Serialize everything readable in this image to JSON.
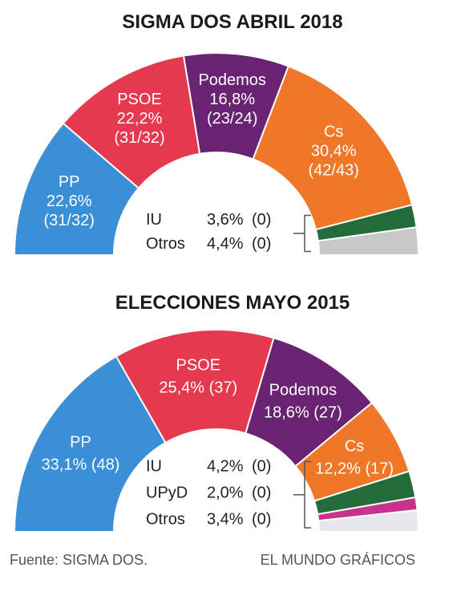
{
  "chart_data": [
    {
      "type": "pie",
      "title": "SIGMA DOS ABRIL 2018",
      "series": [
        {
          "name": "PP",
          "percent_label": "22,6%",
          "seats_label": "(31/32)",
          "value": 22.6,
          "color": "#3a8fd6",
          "label_color": "#ffffff"
        },
        {
          "name": "PSOE",
          "percent_label": "22,2%",
          "seats_label": "(31/32)",
          "value": 22.2,
          "color": "#e5394f",
          "label_color": "#ffffff"
        },
        {
          "name": "Podemos",
          "percent_label": "16,8%",
          "seats_label": "(23/24)",
          "value": 16.8,
          "color": "#6a2373",
          "label_color": "#ffffff"
        },
        {
          "name": "Cs",
          "percent_label": "30,4%",
          "seats_label": "(42/43)",
          "value": 30.4,
          "color": "#f07728",
          "label_color": "#ffffff"
        },
        {
          "name": "IU",
          "percent_label": "3,6%",
          "seats_label": "(0)",
          "value": 3.6,
          "color": "#236b38",
          "label_color": "#222222"
        },
        {
          "name": "Otros",
          "percent_label": "4,4%",
          "seats_label": "(0)",
          "value": 4.4,
          "color": "#c8c8c8",
          "label_color": "#222222"
        }
      ]
    },
    {
      "type": "pie",
      "title": "ELECCIONES MAYO 2015",
      "series": [
        {
          "name": "PP",
          "percent_label": "33,1%",
          "seats_label": "(48)",
          "value": 33.1,
          "color": "#3a8fd6",
          "label_color": "#ffffff"
        },
        {
          "name": "PSOE",
          "percent_label": "25,4%",
          "seats_label": "(37)",
          "value": 25.4,
          "color": "#e5394f",
          "label_color": "#ffffff"
        },
        {
          "name": "Podemos",
          "percent_label": "18,6%",
          "seats_label": "(27)",
          "value": 18.6,
          "color": "#6a2373",
          "label_color": "#ffffff"
        },
        {
          "name": "Cs",
          "percent_label": "12,2%",
          "seats_label": "(17)",
          "value": 12.2,
          "color": "#f07728",
          "label_color": "#ffffff"
        },
        {
          "name": "IU",
          "percent_label": "4,2%",
          "seats_label": "(0)",
          "value": 4.2,
          "color": "#236b38",
          "label_color": "#222222"
        },
        {
          "name": "UPyD",
          "percent_label": "2,0%",
          "seats_label": "(0)",
          "value": 2.0,
          "color": "#c8318c",
          "label_color": "#222222"
        },
        {
          "name": "Otros",
          "percent_label": "3,4%",
          "seats_label": "(0)",
          "value": 3.4,
          "color": "#e6e6ec",
          "label_color": "#222222"
        }
      ]
    }
  ],
  "footer": {
    "source": "Fuente: SIGMA DOS.",
    "credit": "EL MUNDO GRÁFICOS"
  }
}
